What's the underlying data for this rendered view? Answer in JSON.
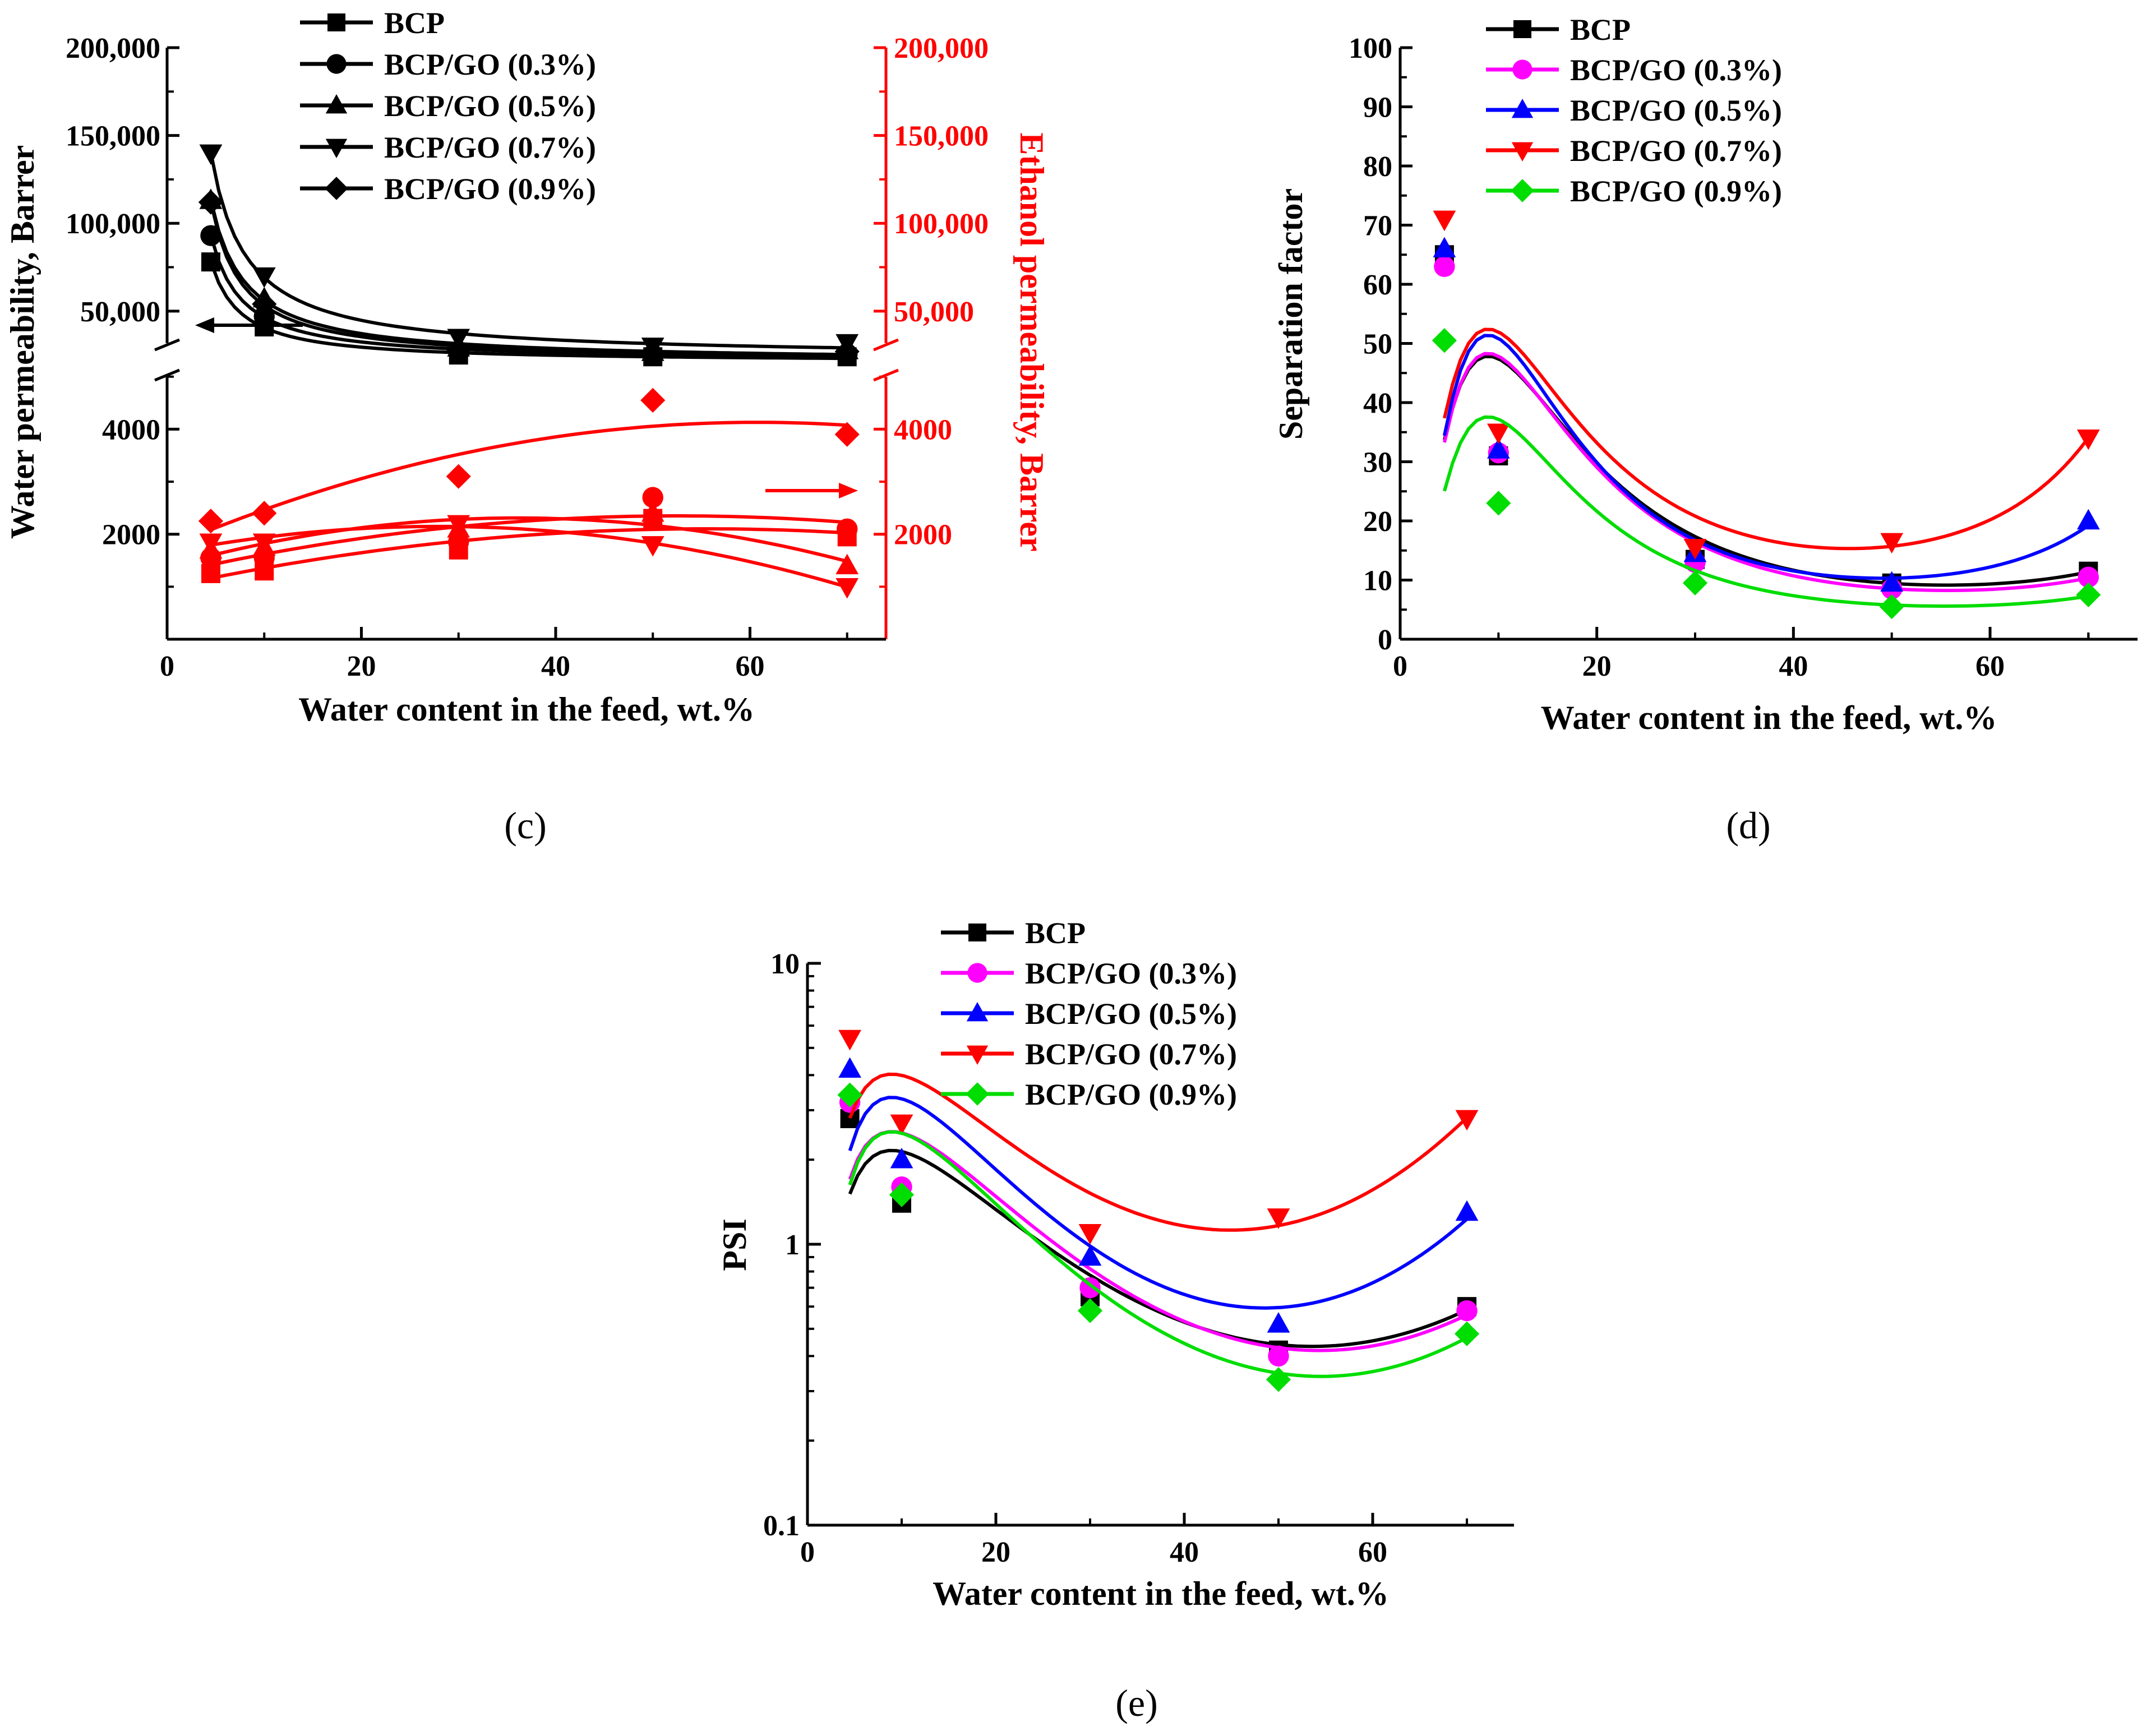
{
  "figure": {
    "panel_labels": [
      "(c)",
      "(d)",
      "(e)"
    ]
  },
  "colors": {
    "black": "#000000",
    "magenta": "#ff00ff",
    "blue": "#0000ff",
    "red": "#ff0000",
    "green": "#00dd00"
  },
  "chart_data": [
    {
      "panel": "(c)",
      "type": "scatter",
      "title": "",
      "xlabel": "Water content in the feed, wt.%",
      "ylabel": "Water permeability, Barrer",
      "y2label": "Ethanol permeability, Barrer",
      "xlim": [
        0,
        74
      ],
      "x_ticks": [
        "0",
        "20",
        "40",
        "60"
      ],
      "y_upper_range": [
        26000,
        200000
      ],
      "y_upper_ticks": [
        "50,000",
        "100,000",
        "150,000",
        "200,000"
      ],
      "y_lower_range": [
        0,
        5200
      ],
      "y_lower_ticks": [
        "2000",
        "4000"
      ],
      "y2_upper_ticks": [
        "50,000",
        "100,000",
        "150,000",
        "200,000"
      ],
      "y2_lower_ticks": [
        "2000",
        "4000"
      ],
      "legend_position": "top-left",
      "x": [
        4.5,
        10,
        30,
        50,
        70
      ],
      "water_series": [
        {
          "name": "BCP",
          "marker": "square",
          "values": [
            78000,
            41000,
            25000,
            24000,
            24000
          ]
        },
        {
          "name": "BCP/GO (0.3%)",
          "marker": "circle",
          "values": [
            93000,
            47000,
            27000,
            25000,
            25500
          ]
        },
        {
          "name": "BCP/GO (0.5%)",
          "marker": "triangle-up",
          "values": [
            113000,
            57000,
            29000,
            26500,
            27500
          ]
        },
        {
          "name": "BCP/GO (0.7%)",
          "marker": "triangle-down",
          "values": [
            140000,
            70000,
            35000,
            30000,
            32000
          ]
        },
        {
          "name": "BCP/GO (0.9%)",
          "marker": "diamond",
          "values": [
            112000,
            54000,
            28000,
            26000,
            27000
          ]
        }
      ],
      "ethanol_series": [
        {
          "name": "BCP",
          "marker": "square",
          "values": [
            1250,
            1300,
            1700,
            2300,
            1950
          ]
        },
        {
          "name": "BCP/GO (0.3%)",
          "marker": "circle",
          "values": [
            1550,
            1550,
            1850,
            2700,
            2100
          ]
        },
        {
          "name": "BCP/GO (0.5%)",
          "marker": "triangle-up",
          "values": [
            1700,
            1750,
            2100,
            2400,
            1400
          ]
        },
        {
          "name": "BCP/GO (0.7%)",
          "marker": "triangle-down",
          "values": [
            1850,
            1850,
            2200,
            1800,
            1000
          ]
        },
        {
          "name": "BCP/GO (0.9%)",
          "marker": "diamond",
          "values": [
            2250,
            2400,
            3100,
            4550,
            3900
          ]
        }
      ]
    },
    {
      "panel": "(d)",
      "type": "scatter",
      "title": "",
      "xlabel": "Water content in the feed, wt.%",
      "ylabel": "Separation factor",
      "xlim": [
        0,
        75
      ],
      "ylim": [
        0,
        100
      ],
      "x_ticks": [
        "0",
        "20",
        "40",
        "60"
      ],
      "y_ticks": [
        "0",
        "10",
        "20",
        "30",
        "40",
        "50",
        "60",
        "70",
        "80",
        "90",
        "100"
      ],
      "legend_position": "top-left",
      "x": [
        4.5,
        10,
        30,
        50,
        70
      ],
      "series": [
        {
          "name": "BCP",
          "marker": "square",
          "color": "#000000",
          "values": [
            65,
            31,
            13.5,
            9.5,
            11.5
          ]
        },
        {
          "name": "BCP/GO (0.3%)",
          "marker": "circle",
          "color": "#ff00ff",
          "values": [
            63,
            31.5,
            13,
            8.5,
            10.5
          ]
        },
        {
          "name": "BCP/GO (0.5%)",
          "marker": "triangle-up",
          "color": "#0000ff",
          "values": [
            66,
            32,
            14.5,
            9.5,
            20
          ]
        },
        {
          "name": "BCP/GO (0.7%)",
          "marker": "triangle-down",
          "color": "#ff0000",
          "values": [
            71,
            35,
            15.5,
            16.5,
            34
          ]
        },
        {
          "name": "BCP/GO (0.9%)",
          "marker": "diamond",
          "color": "#00dd00",
          "values": [
            50.5,
            23,
            9.5,
            5.5,
            7.5
          ]
        }
      ]
    },
    {
      "panel": "(e)",
      "type": "scatter",
      "title": "",
      "xlabel": "Water content in the feed, wt.%",
      "ylabel": "PSI",
      "y_scale": "log",
      "xlim": [
        0,
        75
      ],
      "ylim": [
        0.1,
        10
      ],
      "x_ticks": [
        "0",
        "20",
        "40",
        "60"
      ],
      "y_ticks": [
        "0.1",
        "1",
        "10"
      ],
      "legend_position": "top-left",
      "x": [
        4.5,
        10,
        30,
        50,
        70
      ],
      "series": [
        {
          "name": "BCP",
          "marker": "square",
          "color": "#000000",
          "values": [
            2.8,
            1.4,
            0.65,
            0.42,
            0.6
          ]
        },
        {
          "name": "BCP/GO (0.3%)",
          "marker": "circle",
          "color": "#ff00ff",
          "values": [
            3.2,
            1.6,
            0.7,
            0.4,
            0.58
          ]
        },
        {
          "name": "BCP/GO (0.5%)",
          "marker": "triangle-up",
          "color": "#0000ff",
          "values": [
            4.2,
            2.0,
            0.9,
            0.52,
            1.3
          ]
        },
        {
          "name": "BCP/GO (0.7%)",
          "marker": "triangle-down",
          "color": "#ff0000",
          "values": [
            5.4,
            2.7,
            1.1,
            1.25,
            2.8
          ]
        },
        {
          "name": "BCP/GO (0.9%)",
          "marker": "diamond",
          "color": "#00dd00",
          "values": [
            3.4,
            1.5,
            0.58,
            0.33,
            0.48
          ]
        }
      ]
    }
  ]
}
